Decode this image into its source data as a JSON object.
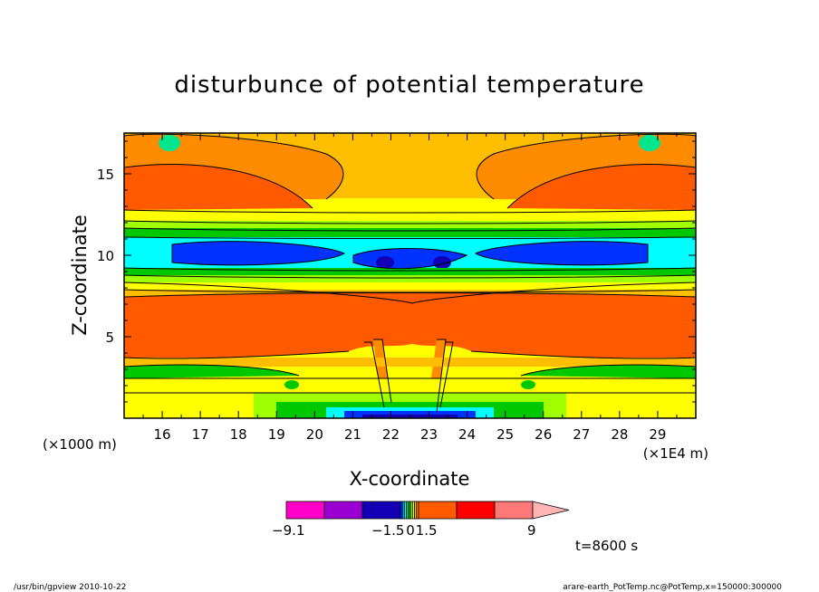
{
  "chart_data": {
    "type": "heatmap",
    "title": "disturbunce of potential temperature",
    "xlabel": "X-coordinate",
    "ylabel": "Z-coordinate",
    "x_unit_left": "(×1000 m)",
    "x_unit_right": "(×1E4 m)",
    "x_ticks": [
      "16",
      "17",
      "18",
      "19",
      "20",
      "21",
      "22",
      "23",
      "24",
      "25",
      "26",
      "27",
      "28",
      "29"
    ],
    "y_ticks": [
      "5",
      "10",
      "15"
    ],
    "xlim": [
      15,
      30
    ],
    "ylim": [
      0,
      17.5
    ],
    "colorbar": {
      "labels": [
        {
          "text": "−9.1",
          "value": -9.1
        },
        {
          "text": "−1.5",
          "value": -1.5
        },
        {
          "text": "0",
          "value": 0
        },
        {
          "text": "1.5",
          "value": 1.5
        },
        {
          "text": "9",
          "value": 9
        }
      ],
      "colors": [
        "#ff00c8",
        "#9a00d2",
        "#1400b4",
        "#0032ff",
        "#00aaff",
        "#00ffff",
        "#00e68c",
        "#00c800",
        "#a0ff00",
        "#ffff00",
        "#ffbe00",
        "#ff8c00",
        "#ff5a00",
        "#ff0000",
        "#ff7878",
        "#ffb4b4"
      ]
    },
    "time_label": "t=8600 s"
  },
  "footer": {
    "left": "/usr/bin/gpview   2010-10-22",
    "right": "arare-earth_PotTemp.nc@PotTemp,x=150000:300000"
  }
}
